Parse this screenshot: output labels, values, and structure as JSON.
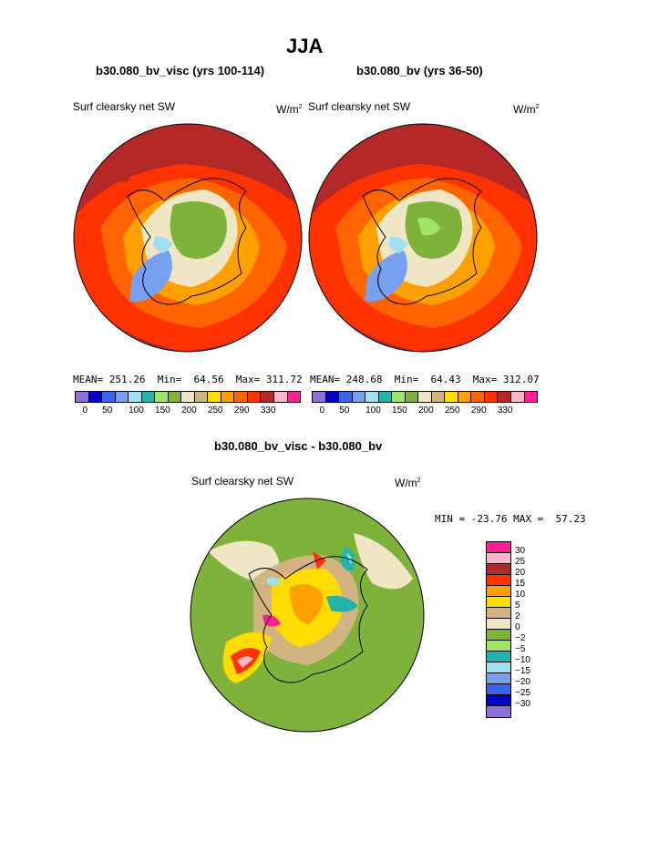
{
  "title": "JJA",
  "panel_left": {
    "case_label": "b30.080_bv_visc (yrs 100-114)",
    "variable": "Surf clearsky net SW",
    "unit_base": "W/m",
    "unit_exp": "2",
    "stats": "MEAN= 251.26  Min=  64.56  Max= 311.72"
  },
  "panel_right": {
    "case_label": "b30.080_bv (yrs 36-50)",
    "variable": "Surf clearsky net SW",
    "unit_base": "W/m",
    "unit_exp": "2",
    "stats": "MEAN= 248.68  Min=  64.43  Max= 312.07"
  },
  "colorbar_top": {
    "colors": [
      "#8f6fd8",
      "#0000c8",
      "#3c64e6",
      "#78a0f0",
      "#a0e0f0",
      "#20b4aa",
      "#a0e664",
      "#7fb23a",
      "#f0e6c3",
      "#d2b482",
      "#ffdc00",
      "#ffa000",
      "#ff6400",
      "#ff3200",
      "#b42828",
      "#ffb4c8",
      "#ff1e96"
    ],
    "labels": [
      "0",
      "50",
      "100",
      "150",
      "200",
      "250",
      "290",
      "330"
    ]
  },
  "panel_diff": {
    "case_label": "b30.080_bv_visc - b30.080_bv",
    "variable": "Surf clearsky net SW",
    "unit_base": "W/m",
    "unit_exp": "2",
    "stats": "MIN = -23.76 MAX =  57.23"
  },
  "colorbar_diff": {
    "colors": [
      "#ff1e96",
      "#ffb4c8",
      "#b42828",
      "#ff3200",
      "#ffa000",
      "#ffdc00",
      "#d2b482",
      "#f0e6c3",
      "#7fb23a",
      "#a0e664",
      "#20b4aa",
      "#a0e0f0",
      "#78a0f0",
      "#3c64e6",
      "#0000c8",
      "#8f6fd8"
    ],
    "labels": [
      "30",
      "25",
      "20",
      "15",
      "10",
      "5",
      "2",
      "0",
      "−2",
      "−5",
      "−10",
      "−15",
      "−20",
      "−25",
      "−30"
    ]
  }
}
